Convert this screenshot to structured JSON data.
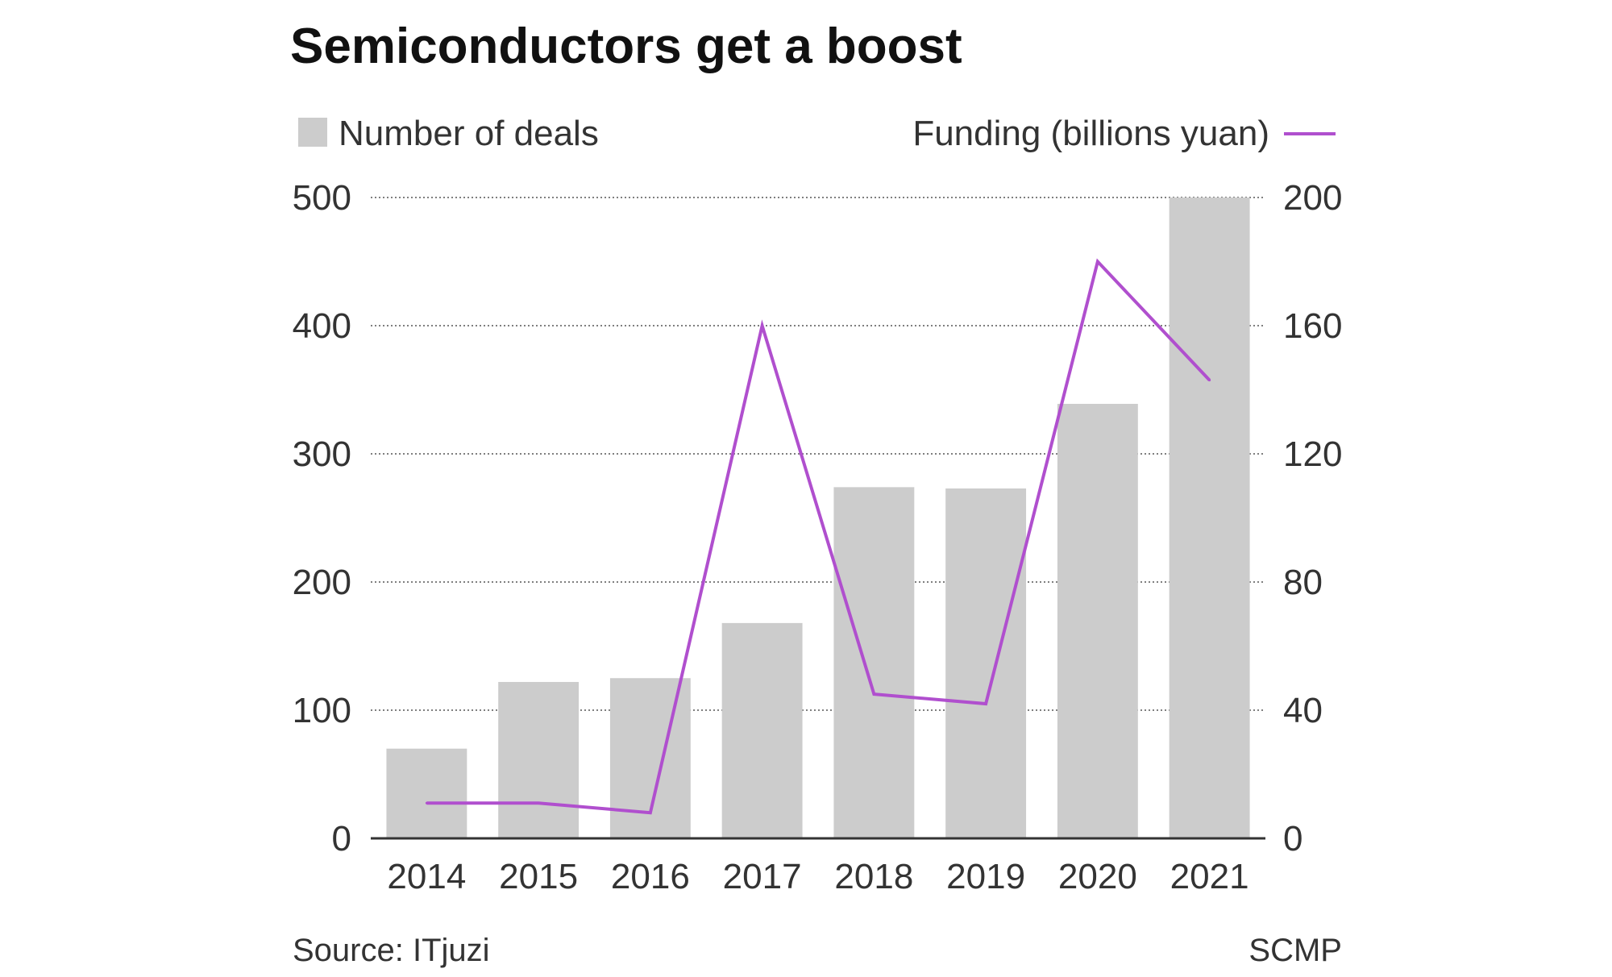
{
  "chart_data": {
    "type": "bar",
    "title": "Semiconductors get a boost",
    "categories": [
      "2014",
      "2015",
      "2016",
      "2017",
      "2018",
      "2019",
      "2020",
      "2021"
    ],
    "series": [
      {
        "name": "Number of deals",
        "type": "bar",
        "axis": "left",
        "color": "#cccccc",
        "values": [
          70,
          122,
          125,
          168,
          274,
          273,
          339,
          500
        ]
      },
      {
        "name": "Funding (billions yuan)",
        "type": "line",
        "axis": "right",
        "color": "#b04fce",
        "values": [
          11,
          11,
          8,
          160,
          45,
          42,
          180,
          143
        ]
      }
    ],
    "left_axis": {
      "ylim": [
        0,
        500
      ],
      "ticks": [
        "0",
        "100",
        "200",
        "300",
        "400",
        "500"
      ]
    },
    "right_axis": {
      "ylim": [
        0,
        200
      ],
      "ticks": [
        "0",
        "40",
        "80",
        "120",
        "160",
        "200"
      ]
    },
    "grid": true,
    "legend": {
      "left_label": "Number of deals",
      "right_label": "Funding (billions yuan)"
    }
  },
  "footer": {
    "source": "Source: ITjuzi",
    "credit": "SCMP"
  }
}
